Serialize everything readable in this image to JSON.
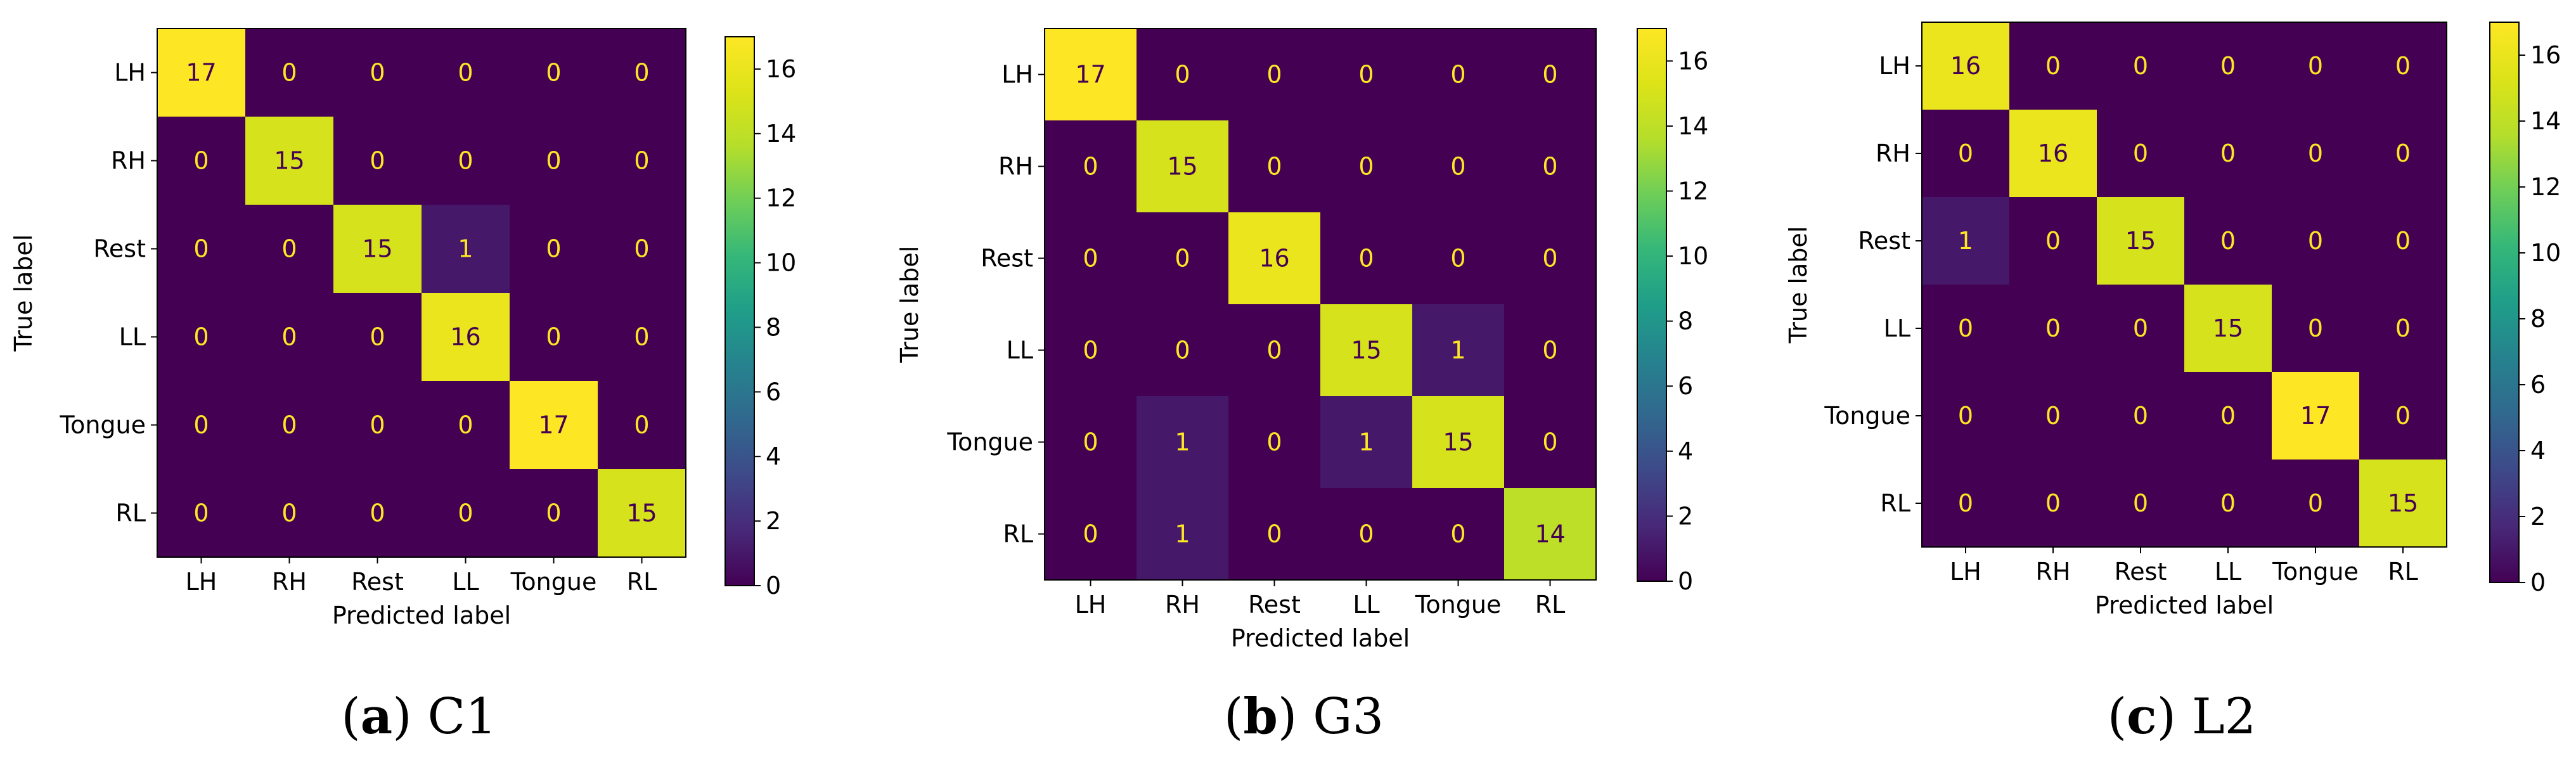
{
  "chart_data": [
    {
      "type": "heatmap",
      "panel_letter": "a",
      "caption": "C1",
      "xlabel": "Predicted label",
      "ylabel": "True label",
      "classes": [
        "LH",
        "RH",
        "Rest",
        "LL",
        "Tongue",
        "RL"
      ],
      "matrix": [
        [
          17,
          0,
          0,
          0,
          0,
          0
        ],
        [
          0,
          15,
          0,
          0,
          0,
          0
        ],
        [
          0,
          0,
          15,
          1,
          0,
          0
        ],
        [
          0,
          0,
          0,
          16,
          0,
          0
        ],
        [
          0,
          0,
          0,
          0,
          17,
          0
        ],
        [
          0,
          0,
          0,
          0,
          0,
          15
        ]
      ],
      "vmin": 0,
      "vmax": 17,
      "colorbar_ticks": [
        0,
        2,
        4,
        6,
        8,
        10,
        12,
        14,
        16
      ]
    },
    {
      "type": "heatmap",
      "panel_letter": "b",
      "caption": "G3",
      "xlabel": "Predicted label",
      "ylabel": "True label",
      "classes": [
        "LH",
        "RH",
        "Rest",
        "LL",
        "Tongue",
        "RL"
      ],
      "matrix": [
        [
          17,
          0,
          0,
          0,
          0,
          0
        ],
        [
          0,
          15,
          0,
          0,
          0,
          0
        ],
        [
          0,
          0,
          16,
          0,
          0,
          0
        ],
        [
          0,
          0,
          0,
          15,
          1,
          0
        ],
        [
          0,
          1,
          0,
          1,
          15,
          0
        ],
        [
          0,
          1,
          0,
          0,
          0,
          14
        ]
      ],
      "vmin": 0,
      "vmax": 17,
      "colorbar_ticks": [
        0,
        2,
        4,
        6,
        8,
        10,
        12,
        14,
        16
      ]
    },
    {
      "type": "heatmap",
      "panel_letter": "c",
      "caption": "L2",
      "xlabel": "Predicted label",
      "ylabel": "True label",
      "classes": [
        "LH",
        "RH",
        "Rest",
        "LL",
        "Tongue",
        "RL"
      ],
      "matrix": [
        [
          16,
          0,
          0,
          0,
          0,
          0
        ],
        [
          0,
          16,
          0,
          0,
          0,
          0
        ],
        [
          1,
          0,
          15,
          0,
          0,
          0
        ],
        [
          0,
          0,
          0,
          15,
          0,
          0
        ],
        [
          0,
          0,
          0,
          0,
          17,
          0
        ],
        [
          0,
          0,
          0,
          0,
          0,
          15
        ]
      ],
      "vmin": 0,
      "vmax": 17,
      "colorbar_ticks": [
        0,
        2,
        4,
        6,
        8,
        10,
        12,
        14,
        16
      ]
    }
  ],
  "colors": {
    "low_text": "#fde725",
    "high_text": "#440154",
    "axis": "#000000"
  }
}
